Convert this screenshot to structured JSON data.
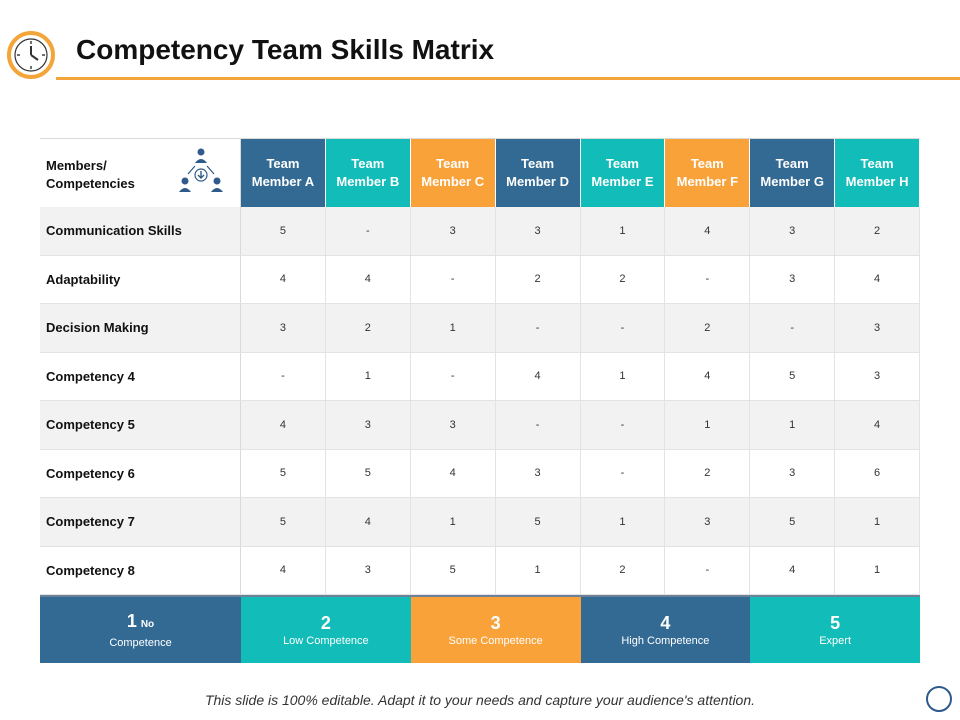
{
  "title": "Competency Team Skills Matrix",
  "colors": {
    "blue": "#336a94",
    "teal": "#12bcb8",
    "orange": "#f9a23a",
    "accent_rule": "#f4a53a"
  },
  "icons": {
    "header_icon": "clock-icon",
    "matrix_icon": "team-hierarchy-icon",
    "footer_icon": "circle-icon"
  },
  "matrix": {
    "corner_label": "Members/\nCompetencies",
    "headers": [
      {
        "label": "Team\nMember A",
        "color": "#336a94"
      },
      {
        "label": "Team\nMember B",
        "color": "#12bcb8"
      },
      {
        "label": "Team\nMember C",
        "color": "#f9a23a"
      },
      {
        "label": "Team\nMember D",
        "color": "#336a94"
      },
      {
        "label": "Team\nMember E",
        "color": "#12bcb8"
      },
      {
        "label": "Team\nMember F",
        "color": "#f9a23a"
      },
      {
        "label": "Team\nMember G",
        "color": "#336a94"
      },
      {
        "label": "Team\nMember H",
        "color": "#12bcb8"
      }
    ],
    "rows": [
      {
        "label": "Communication  Skills",
        "values": [
          "5",
          "-",
          "3",
          "3",
          "1",
          "4",
          "3",
          "2"
        ]
      },
      {
        "label": "Adaptability",
        "values": [
          "4",
          "4",
          "-",
          "2",
          "2",
          "-",
          "3",
          "4"
        ]
      },
      {
        "label": "Decision Making",
        "values": [
          "3",
          "2",
          "1",
          "-",
          "-",
          "2",
          "-",
          "3"
        ]
      },
      {
        "label": "Competency 4",
        "values": [
          "-",
          "1",
          "-",
          "4",
          "1",
          "4",
          "5",
          "3"
        ]
      },
      {
        "label": "Competency 5",
        "values": [
          "4",
          "3",
          "3",
          "-",
          "-",
          "1",
          "1",
          "4"
        ]
      },
      {
        "label": "Competency 6",
        "values": [
          "5",
          "5",
          "4",
          "3",
          "-",
          "2",
          "3",
          "6"
        ]
      },
      {
        "label": "Competency 7",
        "values": [
          "5",
          "4",
          "1",
          "5",
          "1",
          "3",
          "5",
          "1"
        ]
      },
      {
        "label": "Competency 8",
        "values": [
          "4",
          "3",
          "5",
          "1",
          "2",
          "-",
          "4",
          "1"
        ]
      }
    ]
  },
  "legend": [
    {
      "num": "1",
      "num_suffix": "No",
      "desc": "Competence",
      "color": "#336a94"
    },
    {
      "num": "2",
      "num_suffix": "",
      "desc": "Low Competence",
      "color": "#12bcb8"
    },
    {
      "num": "3",
      "num_suffix": "",
      "desc": "Some Competence",
      "color": "#f9a23a"
    },
    {
      "num": "4",
      "num_suffix": "",
      "desc": "High  Competence",
      "color": "#336a94"
    },
    {
      "num": "5",
      "num_suffix": "",
      "desc": "Expert",
      "color": "#12bcb8"
    }
  ],
  "footer": "This slide is 100% editable. Adapt it to your needs and capture your audience's attention."
}
